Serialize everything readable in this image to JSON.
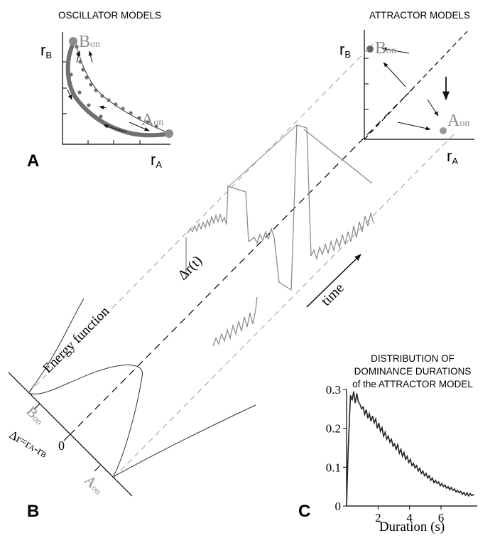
{
  "panels": {
    "a": {
      "letter": "A",
      "title": "OSCILLATOR MODELS",
      "y_axis": {
        "main": "r",
        "sub": "B"
      },
      "x_axis": {
        "main": "r",
        "sub": "A"
      },
      "state_b": {
        "main": "B",
        "sub": "on"
      },
      "state_a": {
        "main": "A",
        "sub": "on"
      }
    },
    "attractor": {
      "title": "ATTRACTOR MODELS",
      "y_axis": {
        "main": "r",
        "sub": "B"
      },
      "x_axis": {
        "main": "r",
        "sub": "A"
      },
      "state_b": {
        "main": "B",
        "sub": "on"
      },
      "state_a": {
        "main": "A",
        "sub": "on"
      }
    },
    "b": {
      "letter": "B",
      "energy_label": "Energy function",
      "delta_r_t": "Δr(t)",
      "time_label": "time",
      "state_b": {
        "main": "B",
        "sub": "on"
      },
      "zero": "0",
      "state_a": {
        "main": "A",
        "sub": "on"
      },
      "axis_label": {
        "pre": "Δr=r",
        "sub1": "A",
        "mid": "-r",
        "sub2": "B"
      }
    },
    "c": {
      "letter": "C",
      "title_lines": [
        "DISTRIBUTION OF",
        "DOMINANCE DURATIONS",
        "of the  ATTRACTOR MODEL"
      ]
    }
  },
  "colors": {
    "gray": "#8c8c8c",
    "dot": "#6e6e6e",
    "curve": "#222222"
  },
  "chart_data": {
    "type": "line",
    "title": "",
    "xlabel": "Duration (s)",
    "ylabel": "",
    "xlim": [
      0,
      8.3
    ],
    "ylim": [
      0,
      0.3
    ],
    "x_ticks": [
      2,
      4,
      6
    ],
    "y_ticks": [
      0,
      0.1,
      0.2,
      0.3
    ],
    "x_tick_labels": [
      "2",
      "4",
      "6"
    ],
    "y_tick_labels": [
      "0",
      "0.1",
      "0.2",
      "0.3"
    ],
    "series": [
      {
        "x": [
          0.0,
          0.1,
          0.25,
          0.35,
          0.45,
          0.55,
          0.65,
          0.75,
          0.85,
          0.95,
          1.05,
          1.15,
          1.25,
          1.35,
          1.45,
          1.55,
          1.65,
          1.75,
          1.85,
          1.95,
          2.05,
          2.15,
          2.25,
          2.35,
          2.45,
          2.55,
          2.65,
          2.75,
          2.85,
          2.95,
          3.05,
          3.15,
          3.25,
          3.35,
          3.45,
          3.55,
          3.65,
          3.75,
          3.85,
          3.95,
          4.05,
          4.15,
          4.25,
          4.35,
          4.45,
          4.55,
          4.65,
          4.75,
          4.85,
          4.95,
          5.05,
          5.15,
          5.25,
          5.35,
          5.45,
          5.55,
          5.65,
          5.75,
          5.85,
          5.95,
          6.05,
          6.15,
          6.25,
          6.35,
          6.45,
          6.55,
          6.65,
          6.75,
          6.85,
          6.95,
          7.05,
          7.15,
          7.25,
          7.35,
          7.45,
          7.55,
          7.65,
          7.75,
          7.85,
          7.95,
          8.1
        ],
        "y": [
          0.0,
          0.14,
          0.285,
          0.272,
          0.295,
          0.265,
          0.29,
          0.268,
          0.262,
          0.25,
          0.255,
          0.236,
          0.248,
          0.226,
          0.238,
          0.218,
          0.232,
          0.214,
          0.224,
          0.2,
          0.214,
          0.192,
          0.202,
          0.18,
          0.19,
          0.172,
          0.18,
          0.164,
          0.172,
          0.154,
          0.16,
          0.146,
          0.158,
          0.136,
          0.146,
          0.128,
          0.138,
          0.12,
          0.128,
          0.112,
          0.12,
          0.104,
          0.11,
          0.098,
          0.104,
          0.09,
          0.097,
          0.084,
          0.09,
          0.078,
          0.084,
          0.072,
          0.078,
          0.066,
          0.072,
          0.06,
          0.066,
          0.058,
          0.062,
          0.052,
          0.058,
          0.05,
          0.054,
          0.046,
          0.05,
          0.042,
          0.048,
          0.04,
          0.044,
          0.036,
          0.04,
          0.034,
          0.038,
          0.03,
          0.035,
          0.028,
          0.034,
          0.026,
          0.032,
          0.027,
          0.03
        ]
      }
    ]
  }
}
